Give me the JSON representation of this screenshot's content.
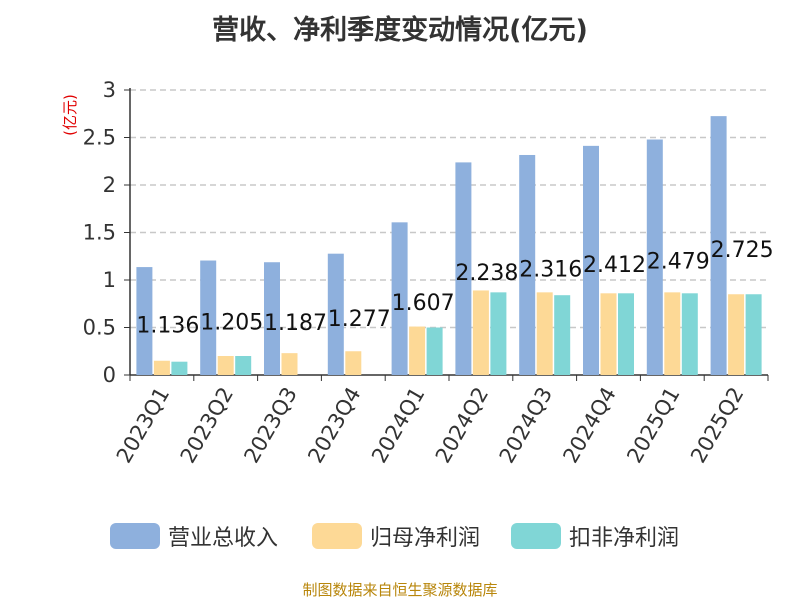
{
  "title": "营收、净利季度变动情况(亿元)",
  "source": "制图数据来自恒生聚源数据库",
  "colors": {
    "revenue": "#8eb0dd",
    "net_profit": "#fdd996",
    "deducted_profit": "#80d6d6"
  },
  "chart_data": {
    "type": "bar",
    "title": "营收、净利季度变动情况(亿元)",
    "ylabel": "(亿元)",
    "xlabel": "",
    "ylim": [
      0,
      3
    ],
    "yticks": [
      0,
      0.5,
      1,
      1.5,
      2,
      2.5,
      3
    ],
    "ytick_labels": [
      "0",
      "0.5",
      "1",
      "1.5",
      "2",
      "2.5",
      "3"
    ],
    "grid": true,
    "legend_position": "bottom",
    "categories": [
      "2023Q1",
      "2023Q2",
      "2023Q3",
      "2023Q4",
      "2024Q1",
      "2024Q2",
      "2024Q3",
      "2024Q4",
      "2025Q1",
      "2025Q2"
    ],
    "series": [
      {
        "name": "营业总收入",
        "values": [
          1.136,
          1.205,
          1.187,
          1.277,
          1.607,
          2.238,
          2.316,
          2.412,
          2.479,
          2.725
        ],
        "labels": [
          "1.136",
          "1.205",
          "1.187",
          "1.277",
          "1.607",
          "2.238",
          "2.316",
          "2.412",
          "2.479",
          "2.725"
        ]
      },
      {
        "name": "归母净利润",
        "values": [
          0.15,
          0.2,
          0.23,
          0.25,
          0.51,
          0.89,
          0.87,
          0.86,
          0.87,
          0.85
        ]
      },
      {
        "name": "扣非净利润",
        "values": [
          0.14,
          0.2,
          0,
          0,
          0.5,
          0.87,
          0.84,
          0.86,
          0.86,
          0.85
        ]
      }
    ]
  }
}
